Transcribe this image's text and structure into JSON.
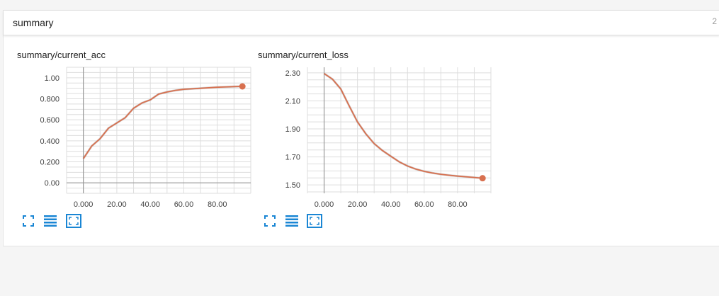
{
  "card": {
    "title": "summary",
    "count": "2"
  },
  "colors": {
    "line": "#d8704f",
    "line_shadow": "#9e9e9e",
    "icon": "#1a86d4",
    "grid": "#dddddd",
    "axis": "#999999"
  },
  "chart_data": [
    {
      "type": "line",
      "title": "summary/current_acc",
      "x": [
        0,
        5,
        10,
        15,
        20,
        25,
        30,
        35,
        40,
        45,
        50,
        55,
        60,
        65,
        70,
        75,
        80,
        85,
        90,
        95
      ],
      "series": [
        {
          "values": [
            0.23,
            0.35,
            0.42,
            0.52,
            0.57,
            0.62,
            0.71,
            0.76,
            0.79,
            0.845,
            0.865,
            0.88,
            0.89,
            0.895,
            0.9,
            0.905,
            0.91,
            0.913,
            0.916,
            0.918
          ]
        }
      ],
      "xlim": [
        -10,
        100
      ],
      "ylim": [
        -0.1,
        1.1
      ],
      "xticks": [
        "0.000",
        "20.00",
        "40.00",
        "60.00",
        "80.00"
      ],
      "yticks": [
        "0.00",
        "0.200",
        "0.400",
        "0.600",
        "0.800",
        "1.00"
      ],
      "xlabel": "",
      "ylabel": "",
      "grid": true
    },
    {
      "type": "line",
      "title": "summary/current_loss",
      "x": [
        0,
        5,
        10,
        15,
        20,
        25,
        30,
        35,
        40,
        45,
        50,
        55,
        60,
        65,
        70,
        75,
        80,
        85,
        90,
        95
      ],
      "series": [
        {
          "values": [
            2.295,
            2.255,
            2.185,
            2.065,
            1.95,
            1.865,
            1.795,
            1.745,
            1.705,
            1.665,
            1.635,
            1.613,
            1.597,
            1.585,
            1.576,
            1.569,
            1.563,
            1.558,
            1.553,
            1.548
          ]
        }
      ],
      "xlim": [
        -10,
        100
      ],
      "ylim": [
        1.44,
        2.34
      ],
      "xticks": [
        "0.000",
        "20.00",
        "40.00",
        "60.00",
        "80.00"
      ],
      "yticks": [
        "1.50",
        "1.70",
        "1.90",
        "2.10",
        "2.30"
      ],
      "xlabel": "",
      "ylabel": "",
      "grid": true
    }
  ],
  "toolbar": {
    "icons": [
      "fit-domain-icon",
      "log-scale-icon",
      "expand-icon"
    ]
  }
}
